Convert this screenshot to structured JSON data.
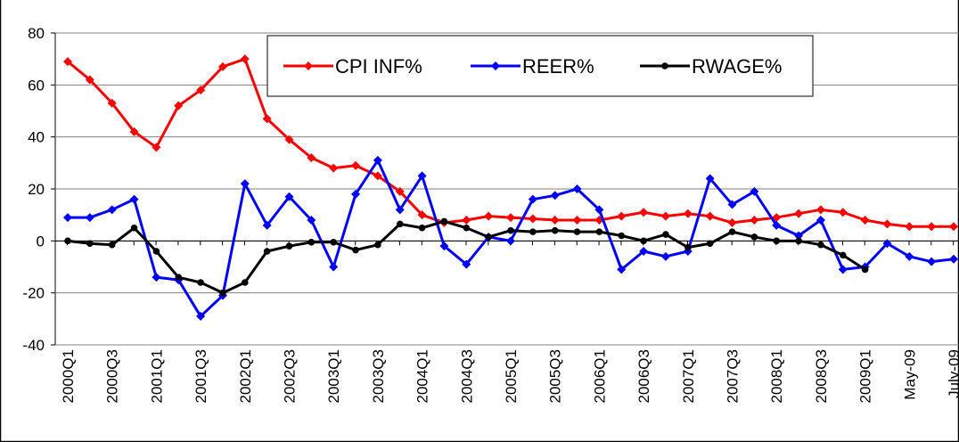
{
  "chart_data": {
    "type": "line",
    "categories": [
      "2000Q1",
      null,
      "2000Q3",
      null,
      "2001Q1",
      null,
      "2001Q3",
      null,
      "2002Q1",
      null,
      "2002Q3",
      null,
      "2003Q1",
      null,
      "2003Q3",
      null,
      "2004Q1",
      null,
      "2004Q3",
      null,
      "2005Q1",
      null,
      "2005Q3",
      null,
      "2006Q1",
      null,
      "2006Q3",
      null,
      "2007Q1",
      null,
      "2007Q3",
      null,
      "2008Q1",
      null,
      "2008Q3",
      null,
      "2009Q1",
      null,
      "May-09",
      null,
      "July-09"
    ],
    "series": [
      {
        "name": "CPI INF%",
        "color": "#ff0000",
        "marker": "diamond",
        "values": [
          69,
          62,
          53,
          42,
          36,
          52,
          58,
          67,
          70,
          47,
          39,
          32,
          28,
          29,
          25,
          19,
          10,
          7,
          8,
          9.5,
          9,
          8.5,
          8,
          8,
          8,
          9.5,
          11,
          9.5,
          10.5,
          9.5,
          7,
          8,
          9,
          10.5,
          12,
          11,
          8,
          6.5,
          5.5,
          5.5,
          5.5
        ]
      },
      {
        "name": "REER%",
        "color": "#0000ff",
        "marker": "diamond",
        "values": [
          9,
          9,
          12,
          16,
          -14,
          -15,
          -29,
          -21,
          22,
          6,
          17,
          8,
          -10,
          18,
          31,
          12,
          25,
          -2,
          -9,
          1.5,
          0,
          16,
          17.5,
          20,
          12,
          -11,
          -4,
          -6,
          -4,
          24,
          14,
          19,
          6,
          2,
          8,
          -11,
          -10,
          -1,
          -6,
          -8,
          -7
        ]
      },
      {
        "name": "RWAGE%",
        "color": "#000000",
        "marker": "circle",
        "values": [
          0,
          -1,
          -1.5,
          5,
          -4,
          -14,
          -16,
          -20,
          -16,
          -4,
          -2,
          -0.5,
          -0.5,
          -3.5,
          -1.5,
          6.5,
          5,
          7.5,
          5,
          1.5,
          4,
          3.5,
          4,
          3.5,
          3.5,
          2,
          0,
          2.5,
          -2.5,
          -1,
          3.5,
          1.5,
          0,
          0,
          -1.5,
          -5.5,
          -11,
          null,
          null,
          null,
          null
        ]
      }
    ],
    "ylim": [
      -40,
      80
    ],
    "yticks": [
      -40,
      -20,
      0,
      20,
      40,
      60,
      80
    ],
    "grid": true,
    "legend": "top"
  }
}
